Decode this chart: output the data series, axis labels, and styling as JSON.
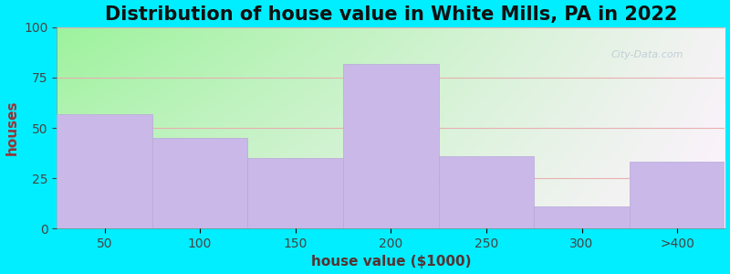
{
  "categories": [
    "50",
    "100",
    "150",
    "200",
    "250",
    "300",
    ">400"
  ],
  "values": [
    57,
    45,
    35,
    82,
    36,
    11,
    33
  ],
  "bar_color": "#c9b8e8",
  "bar_edge_color": "#b8a8d8",
  "title": "Distribution of house value in White Mills, PA in 2022",
  "xlabel": "house value ($1000)",
  "ylabel": "houses",
  "ylim": [
    0,
    100
  ],
  "yticks": [
    0,
    25,
    50,
    75,
    100
  ],
  "figure_bg": "#00eeff",
  "title_fontsize": 15,
  "label_fontsize": 11,
  "tick_fontsize": 10,
  "ylabel_color": "#993333",
  "xlabel_color": "#553333",
  "grid_color": "#e8b0b0",
  "watermark": "City-Data.com"
}
